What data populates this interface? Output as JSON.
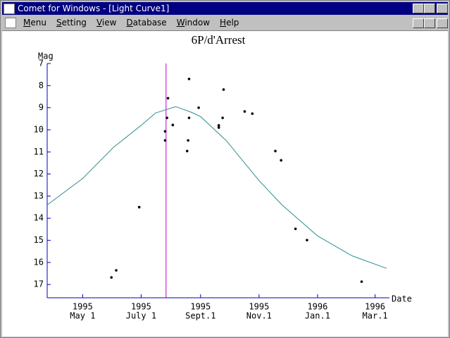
{
  "window": {
    "title": "Comet for Windows - [Light Curve1]"
  },
  "menu": [
    "Menu",
    "Setting",
    "View",
    "Database",
    "Window",
    "Help"
  ],
  "chart_data": {
    "type": "scatter",
    "title": "6P/d'Arrest",
    "y_label": "Mag",
    "x_label": "Date",
    "ylim": [
      7,
      17.6
    ],
    "inverted_y": true,
    "yticks": [
      7,
      8,
      9,
      10,
      11,
      12,
      13,
      14,
      15,
      16,
      17
    ],
    "xlim": [
      "1995-03-25",
      "1996-03-16"
    ],
    "xticks": [
      {
        "value": "1995-05-01",
        "year": "1995",
        "label": "May 1"
      },
      {
        "value": "1995-07-01",
        "year": "1995",
        "label": "July 1"
      },
      {
        "value": "1995-09-01",
        "year": "1995",
        "label": "Sept.1"
      },
      {
        "value": "1995-11-01",
        "year": "1995",
        "label": "Nov.1"
      },
      {
        "value": "1996-01-01",
        "year": "1996",
        "label": "Jan.1"
      },
      {
        "value": "1996-03-01",
        "year": "1996",
        "label": "Mar.1"
      }
    ],
    "axis_color": "#0000c0",
    "marker_line": {
      "x": "1995-07-27",
      "color": "#c000c0"
    },
    "series": [
      {
        "type": "scatter",
        "color": "#000000",
        "x": [
          "1995-05-31",
          "1995-06-05",
          "1995-06-29",
          "1995-07-26",
          "1995-07-26",
          "1995-07-28",
          "1995-07-29",
          "1995-08-03",
          "1995-08-18",
          "1995-08-19",
          "1995-08-20",
          "1995-08-20",
          "1995-08-30",
          "1995-09-20",
          "1995-09-20",
          "1995-09-24",
          "1995-09-25",
          "1995-10-17",
          "1995-10-25",
          "1995-11-18",
          "1995-11-24",
          "1995-12-09",
          "1995-12-21",
          "1996-02-16"
        ],
        "values": [
          16.68,
          16.36,
          13.5,
          10.48,
          10.07,
          9.46,
          8.57,
          9.78,
          10.96,
          10.48,
          7.7,
          9.46,
          9.0,
          9.8,
          9.9,
          9.46,
          8.18,
          9.17,
          9.27,
          10.96,
          11.38,
          14.48,
          14.99,
          16.87
        ]
      },
      {
        "type": "line",
        "color": "#2f8f8f",
        "x": [
          "1995-03-25",
          "1995-05-01",
          "1995-06-02",
          "1995-07-01",
          "1995-07-16",
          "1995-08-06",
          "1995-08-22",
          "1995-09-01",
          "1995-09-28",
          "1995-11-01",
          "1995-11-25",
          "1996-01-01",
          "1996-02-06",
          "1996-03-13"
        ],
        "values": [
          13.4,
          12.2,
          10.8,
          9.8,
          9.24,
          8.95,
          9.2,
          9.4,
          10.5,
          12.3,
          13.4,
          14.8,
          15.7,
          16.27
        ]
      }
    ]
  }
}
